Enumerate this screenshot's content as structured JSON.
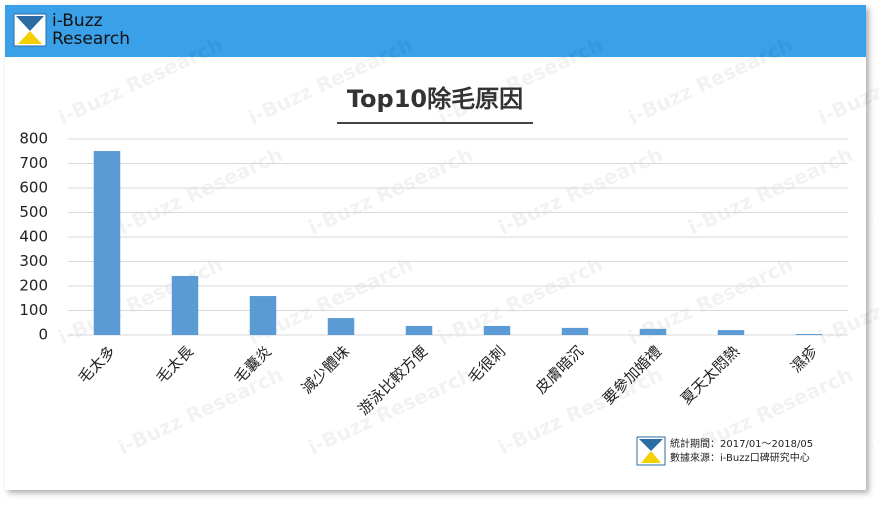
{
  "header": {
    "logo_line1": "i-Buzz",
    "logo_line2": "Research"
  },
  "watermark": "i-Buzz Research",
  "footer": {
    "period": "統計期間：2017/01～2018/05",
    "source": "數據來源：i-Buzz口碑研究中心"
  },
  "chart_data": {
    "type": "bar",
    "title": "Top10除毛原因",
    "categories": [
      "毛太多",
      "毛太長",
      "毛囊炎",
      "減少體味",
      "游泳比較方便",
      "毛很刺",
      "皮膚暗沉",
      "要參加婚禮",
      "夏天太悶熱",
      "濕疹"
    ],
    "values": [
      751,
      241,
      159,
      69,
      37,
      37,
      29,
      25,
      20,
      4
    ],
    "color": "#5b9bd5",
    "ylim": [
      0,
      800
    ],
    "yticks": [
      0,
      100,
      200,
      300,
      400,
      500,
      600,
      700,
      800
    ],
    "grid": true
  }
}
